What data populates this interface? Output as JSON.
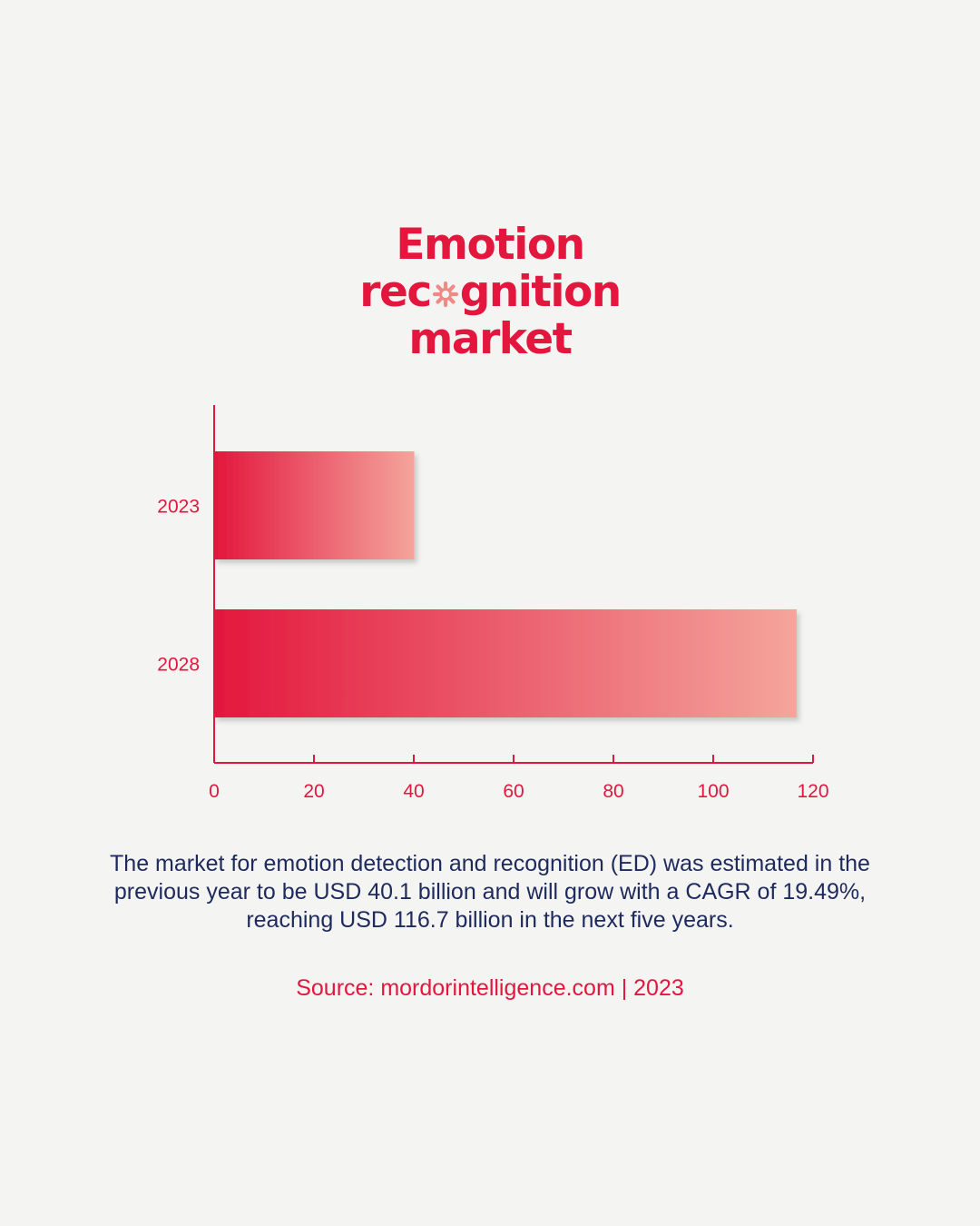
{
  "title": {
    "line1": "Emotion",
    "line2_before": "rec",
    "line2_after": "gnition",
    "line3": "market",
    "star_icon": "asterisk-o-icon",
    "star_color": "#f08a86"
  },
  "colors": {
    "accent": "#e3173e",
    "bar_start": "#e3173e",
    "bar_end": "#f4a59c",
    "text_dark": "#1f2a5c",
    "background": "#f4f4f3"
  },
  "chart_data": {
    "type": "bar",
    "orientation": "horizontal",
    "categories": [
      "2023",
      "2028"
    ],
    "values": [
      40.1,
      116.7
    ],
    "xticks": [
      "0",
      "20",
      "40",
      "60",
      "80",
      "100",
      "120"
    ],
    "xlim": [
      0,
      120
    ],
    "grid": false
  },
  "description": "The market for emotion detection and recognition (ED) was estimated in the previous year to be USD 40.1 billion and will grow with a CAGR of 19.49%, reaching USD 116.7 billion in the next five years.",
  "source": "Source: mordorintelligence.com | 2023"
}
